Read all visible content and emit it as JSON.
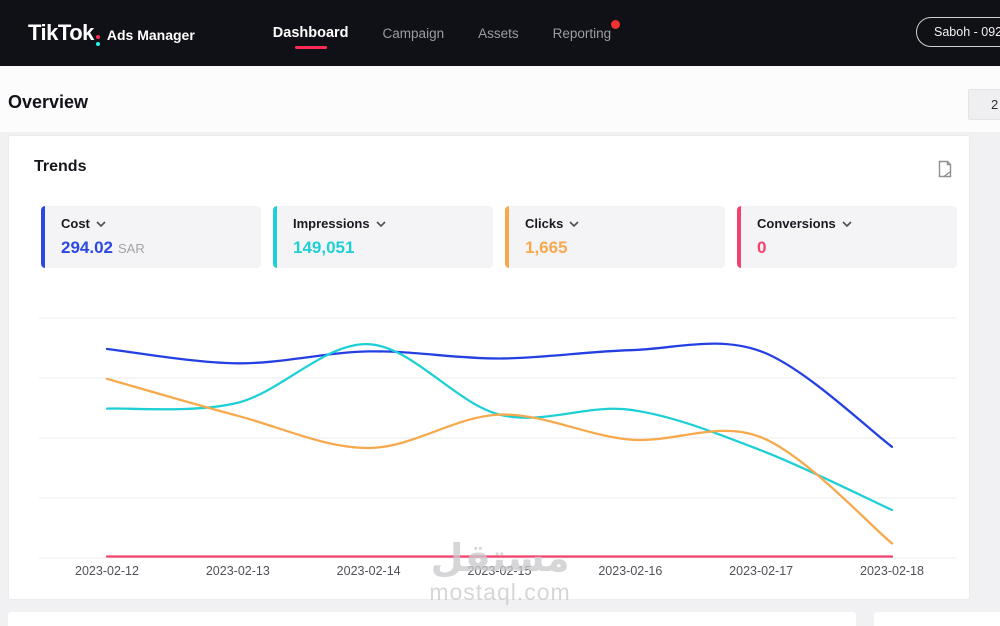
{
  "navbar": {
    "brand": "TikTok",
    "product": "Ads Manager",
    "tabs": [
      {
        "label": "Dashboard",
        "active": true
      },
      {
        "label": "Campaign",
        "active": false
      },
      {
        "label": "Assets",
        "active": false
      },
      {
        "label": "Reporting",
        "active": false,
        "badge": true
      }
    ],
    "account_label": "Saboh - 092",
    "accent_red": "#fe2c55",
    "accent_cyan": "#25f4ee"
  },
  "overview": {
    "title": "Overview",
    "date_range_visible_text": "2"
  },
  "trends": {
    "title": "Trends",
    "metrics": [
      {
        "label": "Cost",
        "value": "294.02",
        "suffix": "SAR",
        "color": "#2b49e0"
      },
      {
        "label": "Impressions",
        "value": "149,051",
        "suffix": "",
        "color": "#1ed0d6"
      },
      {
        "label": "Clicks",
        "value": "1,665",
        "suffix": "",
        "color": "#f6a94d"
      },
      {
        "label": "Conversions",
        "value": "0",
        "suffix": "",
        "color": "#f3426d"
      }
    ]
  },
  "chart_data": {
    "type": "line",
    "title": "Trends",
    "categories": [
      "2023-02-12",
      "2023-02-13",
      "2023-02-14",
      "2023-02-15",
      "2023-02-16",
      "2023-02-17",
      "2023-02-18"
    ],
    "series": [
      {
        "name": "Cost",
        "color": "#2540e2",
        "values": [
          87,
          81,
          86,
          83,
          86.5,
          86,
          46
        ]
      },
      {
        "name": "Impressions",
        "color": "#1ed0d6",
        "values": [
          62,
          64.5,
          89,
          59.5,
          61.5,
          44.5,
          19.5
        ]
      },
      {
        "name": "Clicks",
        "color": "#f6a94d",
        "values": [
          74.5,
          59,
          45.5,
          59.5,
          49,
          50,
          5.5
        ]
      },
      {
        "name": "Conversions",
        "color": "#f3426d",
        "values": [
          0,
          0,
          0,
          0,
          0,
          0,
          0
        ]
      }
    ],
    "xlabel": "",
    "ylabel": "",
    "y_axis_labels_visible": false,
    "value_unit": "percent of plot height (source chart has no visible y-axis labels)",
    "ylim": [
      0,
      100
    ],
    "grid": "horizontal",
    "gridline_count": 5,
    "legend": "none"
  },
  "watermark": {
    "line1": "مستقل",
    "line2": "mostaql.com"
  }
}
